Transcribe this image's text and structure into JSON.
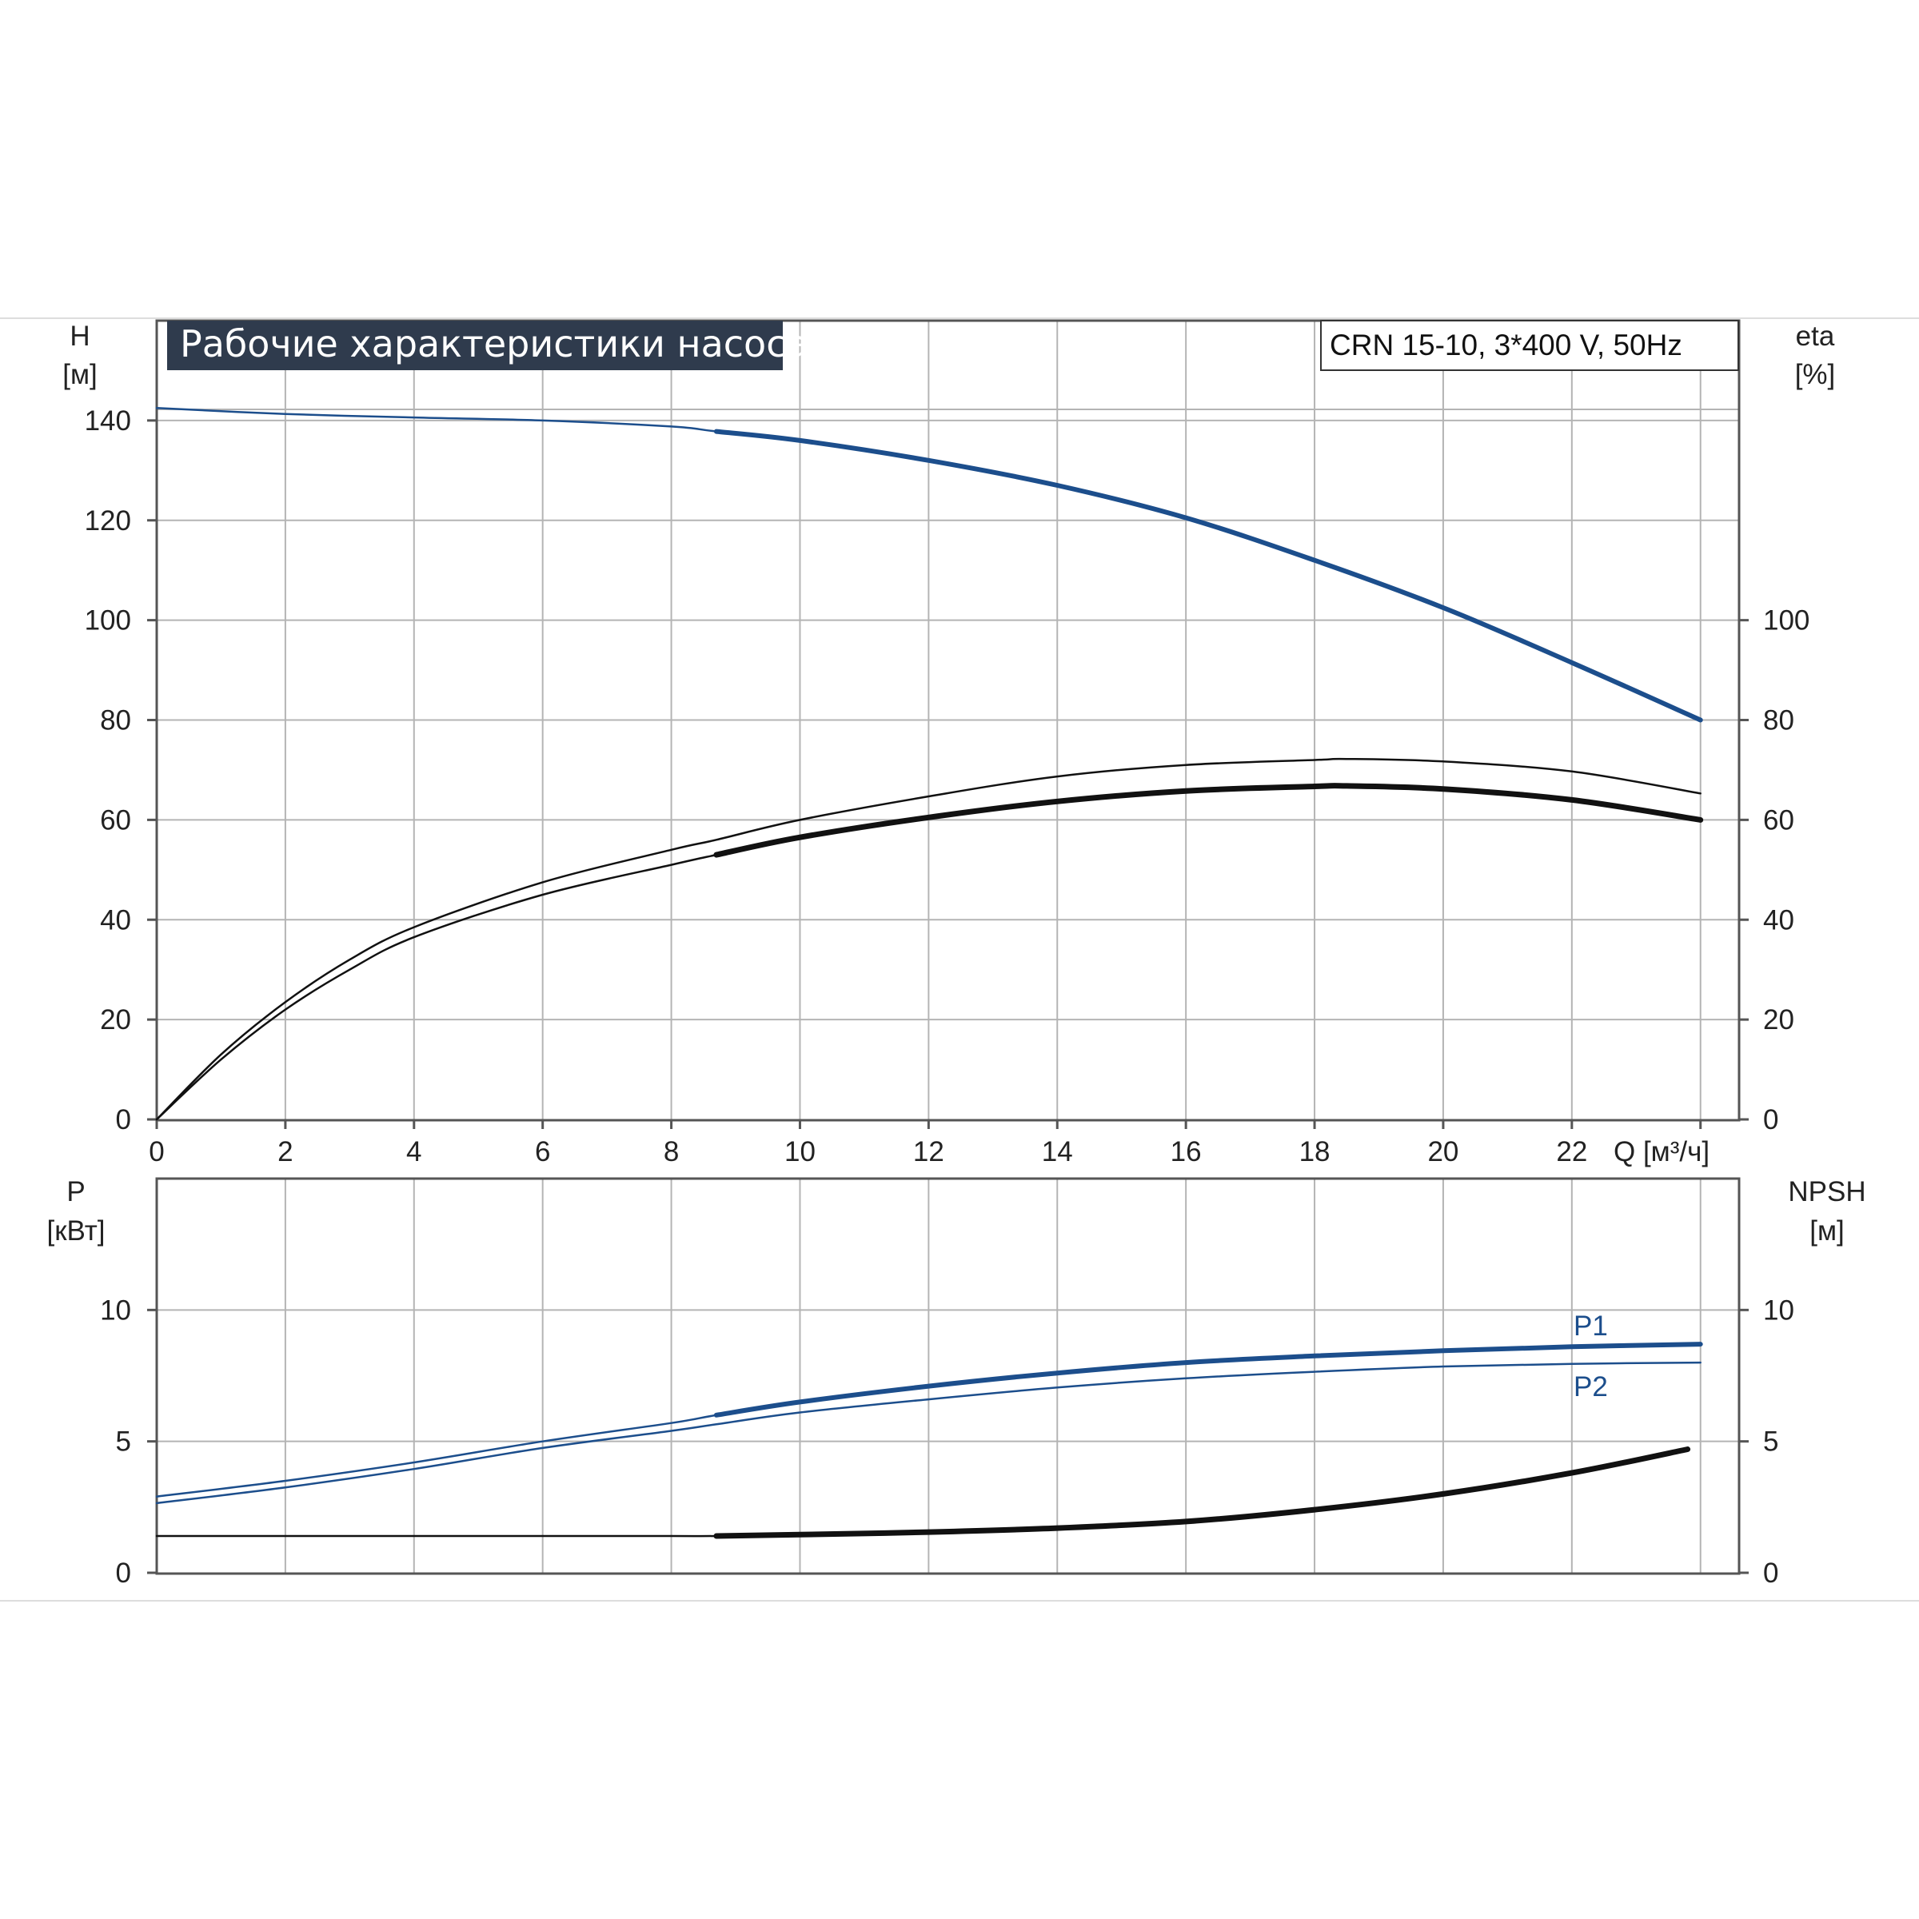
{
  "colors": {
    "blue": "#1c4e8c",
    "black": "#111111",
    "grid": "#b4b4b4",
    "title_bg": "#2f3b4d"
  },
  "title": "Рабочие характеристики насоса",
  "model": "CRN 15-10, 3*400 V, 50Hz",
  "chart_data": [
    {
      "type": "line",
      "panel": "head-efficiency",
      "xlabel": "Q [м³/ч]",
      "ylabel": {
        "name": "H",
        "unit": "[м]"
      },
      "y2label": {
        "name": "eta",
        "unit": "[%]"
      },
      "xlim": [
        0,
        24.6
      ],
      "ylim": [
        0,
        160
      ],
      "x_ticks": [
        "0",
        "2",
        "4",
        "6",
        "8",
        "10",
        "12",
        "14",
        "16",
        "18",
        "20",
        "22"
      ],
      "y_ticks": [
        "0",
        "20",
        "40",
        "60",
        "80",
        "100",
        "120",
        "140"
      ],
      "y2_ticks": [
        "0",
        "20",
        "40",
        "60",
        "80",
        "100"
      ],
      "grid": true,
      "series": [
        {
          "role": "head",
          "color": "#1c4e8c",
          "axis": "left",
          "bold_from_x": 8.7,
          "x": [
            0,
            2,
            4,
            6,
            8,
            8.7,
            10,
            12,
            14,
            16,
            18,
            20,
            22,
            24
          ],
          "y": [
            142.5,
            141.3,
            140.6,
            140,
            138.8,
            137.8,
            136,
            132,
            127,
            120.5,
            112,
            102.5,
            91.5,
            80
          ]
        },
        {
          "role": "efficiency",
          "color": "#111111",
          "axis": "right",
          "bold_from_x": 8.7,
          "x": [
            0,
            1,
            2,
            3,
            4,
            6,
            8,
            8.7,
            10,
            12,
            14,
            16,
            18,
            18.5,
            20,
            22,
            24
          ],
          "y": [
            0,
            12,
            22,
            30,
            36.5,
            45,
            51,
            53,
            56.5,
            60.5,
            63.7,
            65.8,
            66.7,
            66.8,
            66.2,
            64,
            60
          ]
        },
        {
          "role": "efficiency-upper",
          "color": "#111111",
          "axis": "right",
          "thin": true,
          "x": [
            0,
            1,
            2,
            3,
            4,
            6,
            8,
            8.7,
            10,
            12,
            14,
            16,
            18,
            18.5,
            20,
            22,
            24
          ],
          "y": [
            0,
            13,
            23.5,
            32,
            38.5,
            47.5,
            54,
            56,
            60,
            64.7,
            68.7,
            71,
            72,
            72.2,
            71.7,
            69.7,
            65.3
          ]
        }
      ]
    },
    {
      "type": "line",
      "panel": "power-npsh",
      "ylabel": {
        "name": "P",
        "unit": "[кВт]"
      },
      "y2label": {
        "name": "NPSH",
        "unit": "[м]"
      },
      "xlim": [
        0,
        24.6
      ],
      "ylim": [
        0,
        15
      ],
      "y_ticks": [
        "0",
        "5",
        "10"
      ],
      "y2_ticks": [
        "0",
        "5",
        "10"
      ],
      "grid": true,
      "series": [
        {
          "name": "P1",
          "color": "#1c4e8c",
          "bold_from_x": 8.7,
          "x": [
            0,
            2,
            4,
            6,
            8,
            8.7,
            10,
            12,
            14,
            16,
            18,
            20,
            22,
            24
          ],
          "y": [
            2.9,
            3.5,
            4.2,
            5.0,
            5.7,
            6.0,
            6.5,
            7.1,
            7.6,
            8.0,
            8.25,
            8.45,
            8.6,
            8.7
          ]
        },
        {
          "name": "P2",
          "color": "#1c4e8c",
          "x": [
            0,
            2,
            4,
            6,
            8,
            8.7,
            10,
            12,
            14,
            16,
            18,
            20,
            22,
            24
          ],
          "y": [
            2.65,
            3.25,
            3.95,
            4.75,
            5.4,
            5.65,
            6.1,
            6.6,
            7.05,
            7.4,
            7.65,
            7.85,
            7.95,
            8.0
          ]
        },
        {
          "role": "npsh",
          "color": "#111111",
          "bold_from_x": 8.7,
          "x": [
            0,
            2,
            4,
            6,
            8,
            8.7,
            10,
            12,
            14,
            16,
            18,
            20,
            22,
            23.8
          ],
          "y": [
            1.4,
            1.4,
            1.4,
            1.4,
            1.4,
            1.4,
            1.45,
            1.55,
            1.7,
            1.95,
            2.4,
            3.0,
            3.8,
            4.7
          ]
        }
      ]
    }
  ]
}
